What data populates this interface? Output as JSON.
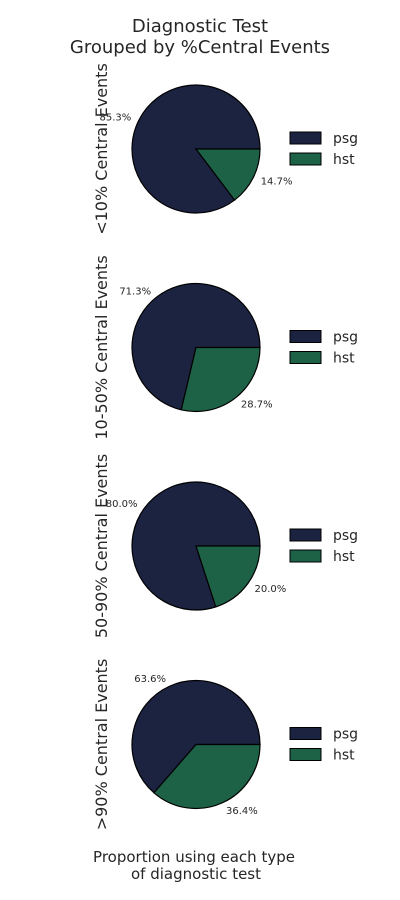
{
  "title_lines": [
    "Diagnostic Test",
    "Grouped by %Central Events"
  ],
  "footer_lines": [
    "Proportion using each type",
    "of diagnostic test"
  ],
  "colors": {
    "psg": "#1b2341",
    "hst": "#1d6147",
    "edge": "#000000"
  },
  "chart_data": [
    {
      "type": "pie",
      "ylabel": "<10% Central Events",
      "labels": [
        "psg",
        "hst"
      ],
      "values": [
        85.3,
        14.7
      ],
      "value_labels": [
        "85.3%",
        "14.7%"
      ],
      "legend": "right"
    },
    {
      "type": "pie",
      "ylabel": "10-50% Central Events",
      "labels": [
        "psg",
        "hst"
      ],
      "values": [
        71.3,
        28.7
      ],
      "value_labels": [
        "71.3%",
        "28.7%"
      ],
      "legend": "right"
    },
    {
      "type": "pie",
      "ylabel": "50-90% Central Events",
      "labels": [
        "psg",
        "hst"
      ],
      "values": [
        80.0,
        20.0
      ],
      "value_labels": [
        "80.0%",
        "20.0%"
      ],
      "legend": "right"
    },
    {
      "type": "pie",
      "ylabel": ">90% Central Events",
      "labels": [
        "psg",
        "hst"
      ],
      "values": [
        63.6,
        36.4
      ],
      "value_labels": [
        "63.6%",
        "36.4%"
      ],
      "legend": "right"
    }
  ]
}
